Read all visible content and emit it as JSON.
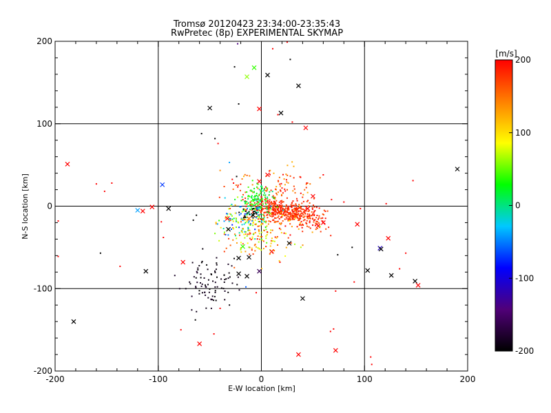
{
  "chart_data": {
    "type": "scatter",
    "title": "Tromsø 20120423 23:34:00-23:35:43",
    "subtitle": "RwPretec (8p) EXPERIMENTAL SKYMAP",
    "xlabel": "E-W location [km]",
    "ylabel": "N-S location [km]",
    "xlim": [
      -200,
      200
    ],
    "ylim": [
      -200,
      200
    ],
    "xticks": [
      "-200",
      "-100",
      "0",
      "100",
      "200"
    ],
    "yticks": [
      "-200",
      "-100",
      "0",
      "100",
      "200"
    ],
    "grid": true,
    "colorbar": {
      "label": "[m/s]",
      "range": [
        -200,
        200
      ],
      "ticks": [
        "200",
        "100",
        "0",
        "-100",
        "-200"
      ],
      "colors": [
        "#000000",
        "#500078",
        "#0000ff",
        "#00c8ff",
        "#00ff00",
        "#ffff00",
        "#ff8000",
        "#ff0000"
      ]
    },
    "cross_points": [
      {
        "x": -188,
        "y": 51,
        "v": 200
      },
      {
        "x": -96,
        "y": 26,
        "v": -70
      },
      {
        "x": -120,
        "y": -5,
        "v": -40
      },
      {
        "x": -115,
        "y": -6,
        "v": 200
      },
      {
        "x": -106,
        "y": -1,
        "v": 200
      },
      {
        "x": -90,
        "y": -3,
        "v": -200
      },
      {
        "x": -112,
        "y": -79,
        "v": -200
      },
      {
        "x": -182,
        "y": -140,
        "v": -200
      },
      {
        "x": -76,
        "y": -68,
        "v": 200
      },
      {
        "x": -60,
        "y": -167,
        "v": 200
      },
      {
        "x": -50,
        "y": 119,
        "v": -200
      },
      {
        "x": -14,
        "y": 157,
        "v": 60
      },
      {
        "x": -7,
        "y": 168,
        "v": 40
      },
      {
        "x": 6,
        "y": 159,
        "v": -200
      },
      {
        "x": -2,
        "y": 118,
        "v": 200
      },
      {
        "x": 19,
        "y": 113,
        "v": -200
      },
      {
        "x": 36,
        "y": 146,
        "v": -200
      },
      {
        "x": 43,
        "y": 95,
        "v": 200
      },
      {
        "x": -32,
        "y": -28,
        "v": -200
      },
      {
        "x": -22,
        "y": -63,
        "v": -200
      },
      {
        "x": -12,
        "y": -62,
        "v": -200
      },
      {
        "x": -18,
        "y": -49,
        "v": 40
      },
      {
        "x": -22,
        "y": -82,
        "v": -200
      },
      {
        "x": -14,
        "y": -85,
        "v": -200
      },
      {
        "x": -2,
        "y": -79,
        "v": -160
      },
      {
        "x": -8,
        "y": -11,
        "v": -200
      },
      {
        "x": -33,
        "y": -15,
        "v": 200
      },
      {
        "x": 27,
        "y": -45,
        "v": -200
      },
      {
        "x": 40,
        "y": -112,
        "v": -200
      },
      {
        "x": 36,
        "y": -180,
        "v": 200
      },
      {
        "x": 72,
        "y": -175,
        "v": 200
      },
      {
        "x": 93,
        "y": -22,
        "v": 200
      },
      {
        "x": 103,
        "y": -78,
        "v": -200
      },
      {
        "x": 115,
        "y": -51,
        "v": -110
      },
      {
        "x": 116,
        "y": -52,
        "v": -200
      },
      {
        "x": 123,
        "y": -39,
        "v": 200
      },
      {
        "x": 126,
        "y": -84,
        "v": -200
      },
      {
        "x": 149,
        "y": -91,
        "v": -200
      },
      {
        "x": 152,
        "y": -96,
        "v": 200
      },
      {
        "x": 190,
        "y": 45,
        "v": -200
      },
      {
        "x": 60,
        "y": -20,
        "v": 200
      },
      {
        "x": 55,
        "y": -24,
        "v": 200
      },
      {
        "x": 45,
        "y": -3,
        "v": 200
      },
      {
        "x": 50,
        "y": 12,
        "v": 200
      },
      {
        "x": 6,
        "y": 38,
        "v": 200
      },
      {
        "x": -2,
        "y": 30,
        "v": 200
      },
      {
        "x": 10,
        "y": -55,
        "v": 200
      },
      {
        "x": -12,
        "y": -15,
        "v": 150
      }
    ],
    "dot_points": [
      {
        "x": -160,
        "y": 27,
        "v": 200
      },
      {
        "x": -152,
        "y": 18,
        "v": 200
      },
      {
        "x": -145,
        "y": 28,
        "v": 200
      },
      {
        "x": -156,
        "y": -57,
        "v": -200
      },
      {
        "x": -137,
        "y": -73,
        "v": 200
      },
      {
        "x": -197,
        "y": -18,
        "v": 200
      },
      {
        "x": -197,
        "y": -61,
        "v": 200
      },
      {
        "x": -97,
        "y": -19,
        "v": 200
      },
      {
        "x": -78,
        "y": -150,
        "v": 200
      },
      {
        "x": -64,
        "y": -138,
        "v": -200
      },
      {
        "x": -58,
        "y": 88,
        "v": -200
      },
      {
        "x": -45,
        "y": 82,
        "v": -200
      },
      {
        "x": -42,
        "y": 76,
        "v": 200
      },
      {
        "x": -26,
        "y": 169,
        "v": -200
      },
      {
        "x": -22,
        "y": 124,
        "v": -200
      },
      {
        "x": -23,
        "y": 197,
        "v": -140
      },
      {
        "x": 11,
        "y": 191,
        "v": 200
      },
      {
        "x": 25,
        "y": 199,
        "v": 200
      },
      {
        "x": 28,
        "y": 178,
        "v": -200
      },
      {
        "x": 16,
        "y": 111,
        "v": 200
      },
      {
        "x": 30,
        "y": 102,
        "v": 200
      },
      {
        "x": 147,
        "y": 31,
        "v": 200
      },
      {
        "x": 121,
        "y": 3,
        "v": 200
      },
      {
        "x": 140,
        "y": -57,
        "v": 200
      },
      {
        "x": 134,
        "y": -76,
        "v": 200
      },
      {
        "x": 74,
        "y": -59,
        "v": -200
      },
      {
        "x": 88,
        "y": -50,
        "v": -200
      },
      {
        "x": 90,
        "y": -92,
        "v": 200
      },
      {
        "x": 72,
        "y": -103,
        "v": 200
      },
      {
        "x": 70,
        "y": -149,
        "v": 200
      },
      {
        "x": 67,
        "y": -152,
        "v": 200
      },
      {
        "x": 106,
        "y": -183,
        "v": 200
      },
      {
        "x": 107,
        "y": -192,
        "v": 200
      },
      {
        "x": -66,
        "y": -17,
        "v": -200
      },
      {
        "x": -63,
        "y": -11,
        "v": -200
      },
      {
        "x": -31,
        "y": 53,
        "v": -40
      },
      {
        "x": -24,
        "y": 36,
        "v": -200
      },
      {
        "x": -27,
        "y": 28,
        "v": 200
      },
      {
        "x": -95,
        "y": -38,
        "v": 200
      },
      {
        "x": -46,
        "y": -155,
        "v": 200
      },
      {
        "x": -40,
        "y": -124,
        "v": 200
      },
      {
        "x": -15,
        "y": -98,
        "v": -60
      },
      {
        "x": -5,
        "y": -105,
        "v": 200
      },
      {
        "x": 18,
        "y": -68,
        "v": 200
      },
      {
        "x": 28,
        "y": -35,
        "v": 200
      },
      {
        "x": 60,
        "y": 38,
        "v": 200
      },
      {
        "x": 44,
        "y": 28,
        "v": 200
      },
      {
        "x": 80,
        "y": 5,
        "v": 200
      },
      {
        "x": 96,
        "y": -3,
        "v": 200
      },
      {
        "x": 68,
        "y": 8,
        "v": 200
      },
      {
        "x": 38,
        "y": 35,
        "v": 200
      }
    ],
    "clusters": [
      {
        "cx": 22,
        "cy": -6,
        "sx": 16,
        "sy": 6,
        "rot": -14,
        "n": 380,
        "vmin": 160,
        "vmax": 200,
        "seed": 11
      },
      {
        "cx": 45,
        "cy": -14,
        "sx": 10,
        "sy": 7,
        "rot": -20,
        "n": 90,
        "vmin": 150,
        "vmax": 200,
        "seed": 12
      },
      {
        "cx": 10,
        "cy": 20,
        "sx": 20,
        "sy": 12,
        "rot": 0,
        "n": 110,
        "vmin": 120,
        "vmax": 200,
        "seed": 13
      },
      {
        "cx": -3,
        "cy": 10,
        "sx": 7,
        "sy": 9,
        "rot": 0,
        "n": 110,
        "vmin": -10,
        "vmax": 50,
        "seed": 14
      },
      {
        "cx": -15,
        "cy": -15,
        "sx": 13,
        "sy": 10,
        "rot": 0,
        "n": 120,
        "vmin": -80,
        "vmax": 100,
        "seed": 15
      },
      {
        "cx": -8,
        "cy": -35,
        "sx": 17,
        "sy": 14,
        "rot": 0,
        "n": 110,
        "vmin": 50,
        "vmax": 200,
        "seed": 16
      },
      {
        "cx": 15,
        "cy": -30,
        "sx": 16,
        "sy": 10,
        "rot": 0,
        "n": 60,
        "vmin": 60,
        "vmax": 200,
        "seed": 17
      },
      {
        "cx": -52,
        "cy": -92,
        "sx": 13,
        "sy": 15,
        "rot": -40,
        "n": 90,
        "vmin": -200,
        "vmax": -180,
        "seed": 18
      },
      {
        "cx": -12,
        "cy": -8,
        "sx": 4,
        "sy": 4,
        "rot": 0,
        "n": 18,
        "vmin": -200,
        "vmax": -200,
        "seed": 19
      }
    ]
  }
}
